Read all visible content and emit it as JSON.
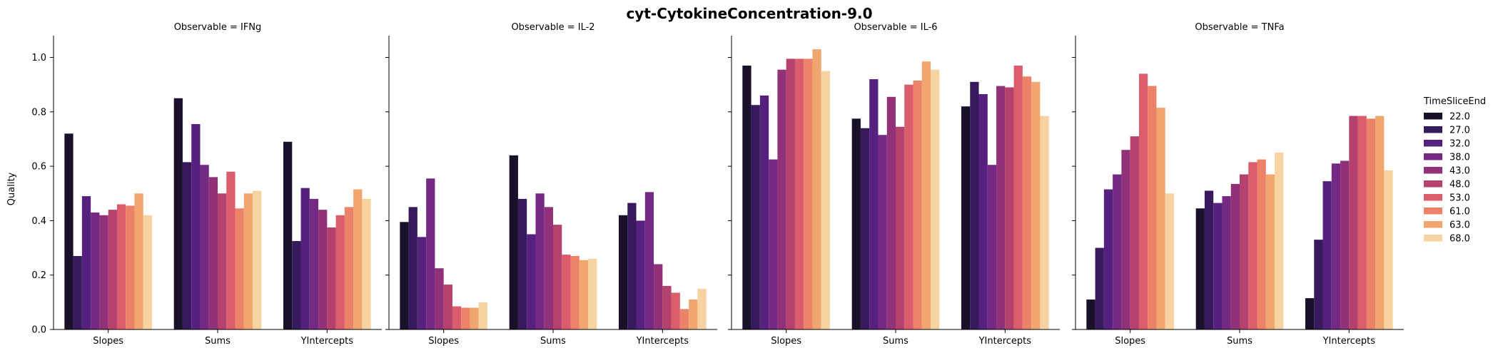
{
  "figure": {
    "title": "cyt-CytokineConcentration-9.0",
    "ylabel": "Quality"
  },
  "legend": {
    "title": "TimeSliceEnd",
    "placement": "right"
  },
  "colors": [
    "#1b1029",
    "#361a5c",
    "#55207e",
    "#742a83",
    "#913279",
    "#b4416e",
    "#d95d6b",
    "#ec8268",
    "#f1a670",
    "#f6d3a0"
  ],
  "chart_data": {
    "type": "bar",
    "categories": [
      "Slopes",
      "Sums",
      "YIntercepts"
    ],
    "series_names": [
      "22.0",
      "27.0",
      "32.0",
      "38.0",
      "43.0",
      "48.0",
      "53.0",
      "61.0",
      "63.0",
      "68.0"
    ],
    "ylim": [
      0,
      1.08
    ],
    "yticks": [
      "0.0",
      "0.2",
      "0.4",
      "0.6",
      "0.8",
      "1.0"
    ],
    "grid": false,
    "panels": [
      {
        "title": "Observable = IFNg",
        "values": {
          "Slopes": [
            0.72,
            0.27,
            0.49,
            0.43,
            0.42,
            0.44,
            0.46,
            0.455,
            0.5,
            0.42
          ],
          "Sums": [
            0.85,
            0.615,
            0.755,
            0.605,
            0.56,
            0.5,
            0.58,
            0.445,
            0.5,
            0.51
          ],
          "YIntercepts": [
            0.69,
            0.325,
            0.52,
            0.48,
            0.44,
            0.375,
            0.42,
            0.45,
            0.515,
            0.48
          ]
        }
      },
      {
        "title": "Observable = IL-2",
        "values": {
          "Slopes": [
            0.395,
            0.45,
            0.34,
            0.555,
            0.225,
            0.165,
            0.085,
            0.08,
            0.08,
            0.1
          ],
          "Sums": [
            0.64,
            0.48,
            0.35,
            0.5,
            0.45,
            0.385,
            0.275,
            0.27,
            0.255,
            0.26
          ],
          "YIntercepts": [
            0.42,
            0.465,
            0.4,
            0.505,
            0.24,
            0.16,
            0.135,
            0.075,
            0.11,
            0.15
          ]
        }
      },
      {
        "title": "Observable = IL-6",
        "values": {
          "Slopes": [
            0.97,
            0.825,
            0.86,
            0.625,
            0.955,
            0.995,
            0.995,
            0.995,
            1.03,
            0.95
          ],
          "Sums": [
            0.775,
            0.74,
            0.92,
            0.715,
            0.855,
            0.745,
            0.9,
            0.915,
            0.985,
            0.955
          ],
          "YIntercepts": [
            0.82,
            0.91,
            0.865,
            0.605,
            0.895,
            0.89,
            0.97,
            0.93,
            0.91,
            0.785
          ]
        }
      },
      {
        "title": "Observable = TNFa",
        "values": {
          "Slopes": [
            0.11,
            0.3,
            0.515,
            0.57,
            0.66,
            0.71,
            0.94,
            0.895,
            0.815,
            0.5
          ],
          "Sums": [
            0.445,
            0.51,
            0.465,
            0.49,
            0.535,
            0.57,
            0.615,
            0.625,
            0.57,
            0.65
          ],
          "YIntercepts": [
            0.115,
            0.33,
            0.545,
            0.61,
            0.62,
            0.785,
            0.785,
            0.775,
            0.785,
            0.585
          ]
        }
      }
    ]
  }
}
